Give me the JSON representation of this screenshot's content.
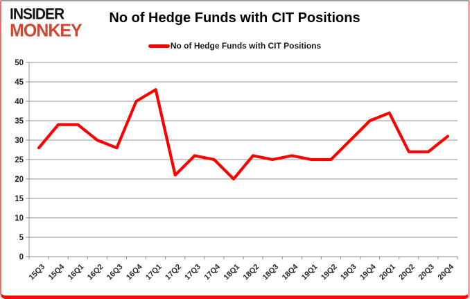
{
  "logo": {
    "line1": "INSIDER",
    "line2": "MONKEY"
  },
  "header": {
    "title": "No of Hedge Funds with CIT Positions"
  },
  "legend": {
    "label": "No of Hedge Funds with CIT Positions"
  },
  "colors": {
    "series_red": "#fb0200",
    "logo_red": "#cf4631",
    "grid_gray": "#909090",
    "axis_text": "#1f1f1f",
    "xlabel_text": "#262626",
    "border_bottom_red": "#fa0a05"
  },
  "chart_data": {
    "type": "line",
    "title": "No of Hedge Funds with CIT Positions",
    "categories": [
      "15Q3",
      "15Q4",
      "16Q1",
      "16Q2",
      "16Q3",
      "16Q4",
      "17Q1",
      "17Q2",
      "17Q3",
      "17Q4",
      "18Q1",
      "18Q2",
      "18Q3",
      "18Q4",
      "19Q1",
      "19Q2",
      "19Q3",
      "19Q4",
      "20Q1",
      "20Q2",
      "20Q3",
      "20Q4"
    ],
    "series": [
      {
        "name": "No of Hedge Funds with CIT Positions",
        "color": "#fb0200",
        "values": [
          28,
          34,
          34,
          30,
          28,
          40,
          43,
          21,
          26,
          25,
          20,
          26,
          25,
          26,
          25,
          25,
          30,
          35,
          37,
          27,
          27,
          31
        ]
      }
    ],
    "xlabel": "",
    "ylabel": "",
    "ylim": [
      0,
      50
    ],
    "ytick_step": 5,
    "grid": true,
    "legend_position": "top"
  }
}
